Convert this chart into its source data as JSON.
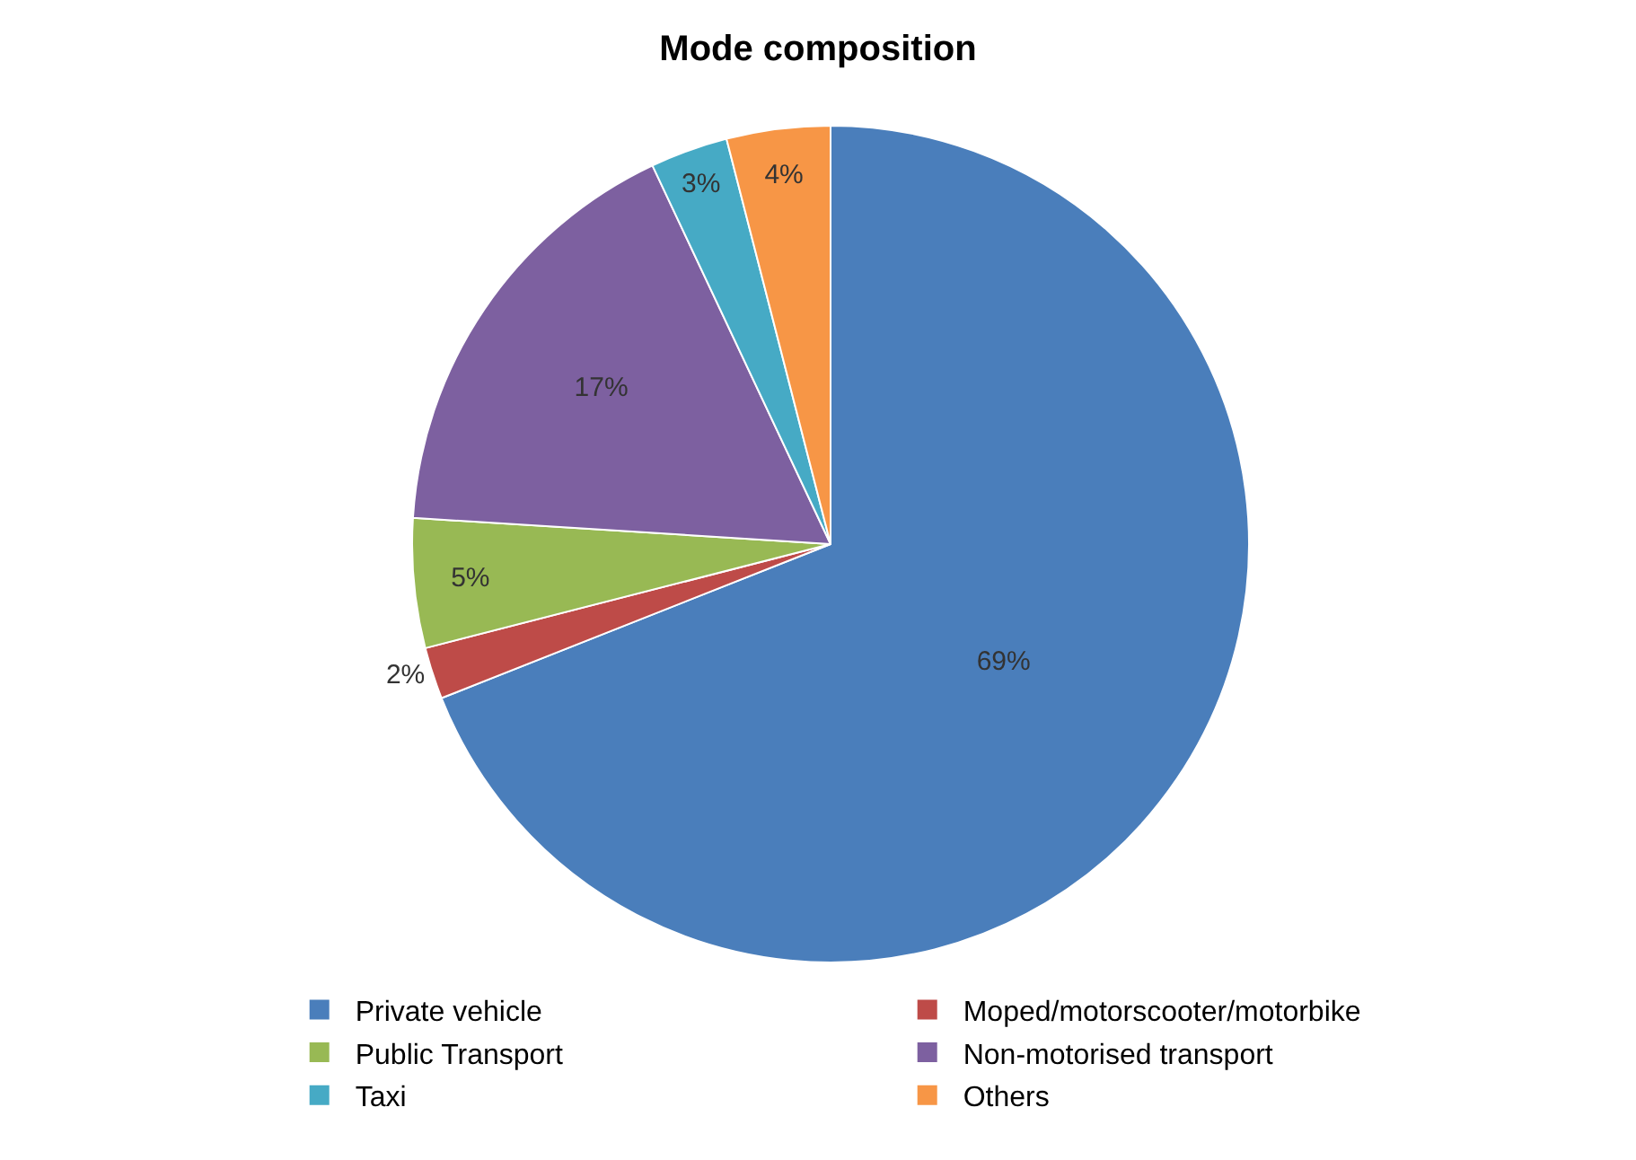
{
  "chart_data": {
    "type": "pie",
    "title": "Mode composition",
    "categories": [
      "Private vehicle",
      "Moped/motorscooter/motorbike",
      "Public Transport",
      "Non-motorised transport",
      "Taxi",
      "Others"
    ],
    "values": [
      69,
      2,
      5,
      17,
      3,
      4
    ],
    "value_labels": [
      "69%",
      "2%",
      "5%",
      "17%",
      "3%",
      "4%"
    ],
    "colors": [
      "#4a7ebb",
      "#be4b48",
      "#98b954",
      "#7d60a0",
      "#46aac5",
      "#f79646"
    ],
    "legend": "bottom"
  }
}
